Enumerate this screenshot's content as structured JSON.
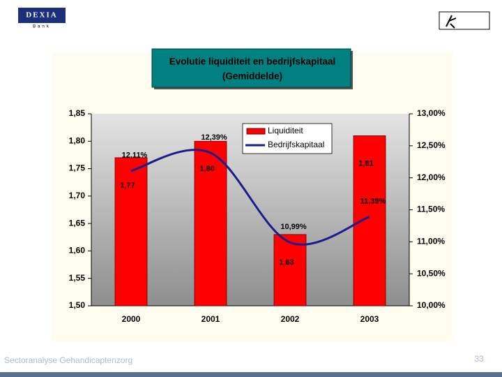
{
  "slide": {
    "logo_left": "DEXIA",
    "logo_left_sub": "Bank",
    "footer": "Sectoranalyse Gehandicaptenzorg",
    "page_number": 33
  },
  "chart_data": {
    "type": "bar",
    "title": "Evolutie liquiditeit en bedrijfskapitaal",
    "subtitle": "(Gemiddelde)",
    "categories": [
      "2000",
      "2001",
      "2002",
      "2003"
    ],
    "series": [
      {
        "name": "Liquiditeit",
        "type": "bar",
        "color": "#ff0000",
        "values": [
          1.77,
          1.8,
          1.63,
          1.81
        ],
        "value_labels": [
          "1,77",
          "1,80",
          "1,63",
          "1,81"
        ]
      },
      {
        "name": "Bedrijfskapitaal",
        "type": "line",
        "axis": "y2",
        "color": "#1c1c8c",
        "values": [
          12.11,
          12.39,
          10.99,
          11.39
        ],
        "value_labels": [
          "12,11%",
          "12,39%",
          "10,99%",
          "11,39%"
        ]
      }
    ],
    "ylim": [
      1.5,
      1.85
    ],
    "yticks": [
      {
        "value": 1.5,
        "label": "1,50"
      },
      {
        "value": 1.55,
        "label": "1,55"
      },
      {
        "value": 1.6,
        "label": "1,60"
      },
      {
        "value": 1.65,
        "label": "1,65"
      },
      {
        "value": 1.7,
        "label": "1,70"
      },
      {
        "value": 1.75,
        "label": "1,75"
      },
      {
        "value": 1.8,
        "label": "1,80"
      },
      {
        "value": 1.85,
        "label": "1,85"
      }
    ],
    "y2lim": [
      10,
      13
    ],
    "y2ticks": [
      {
        "value": 10,
        "label": "10,00%"
      },
      {
        "value": 10.5,
        "label": "10,50%"
      },
      {
        "value": 11,
        "label": "11,00%"
      },
      {
        "value": 11.5,
        "label": "11,50%"
      },
      {
        "value": 12,
        "label": "12,00%"
      },
      {
        "value": 12.5,
        "label": "12,50%"
      },
      {
        "value": 13,
        "label": "13,00%"
      }
    ],
    "legend": "top-center"
  }
}
